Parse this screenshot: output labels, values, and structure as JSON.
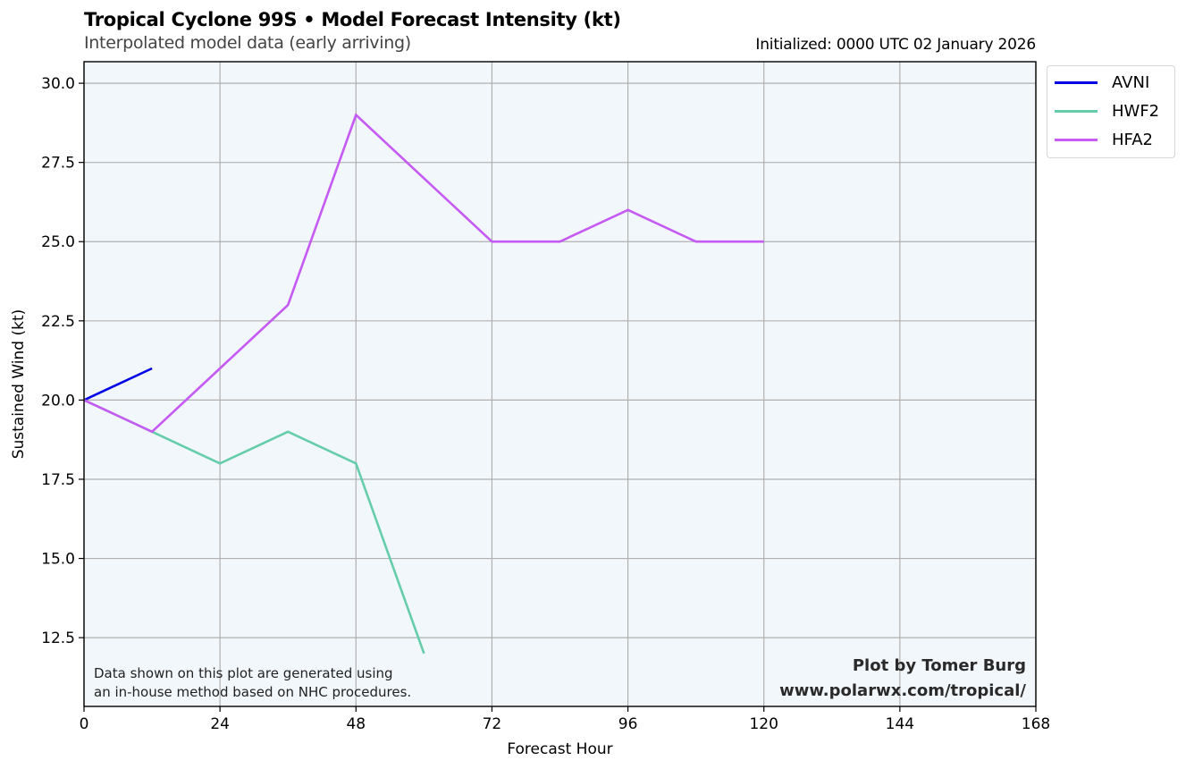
{
  "chart_data": {
    "type": "line",
    "title": "Tropical Cyclone 99S • Model Forecast Intensity (kt)",
    "subtitle": "Interpolated model data (early arriving)",
    "initialized": "Initialized: 0000 UTC 02 January 2026",
    "xlabel": "Forecast Hour",
    "ylabel": "Sustained Wind (kt)",
    "xlim": [
      0,
      168
    ],
    "ylim": [
      10.33,
      30.68
    ],
    "xticks": [
      0,
      24,
      48,
      72,
      96,
      120,
      144,
      168
    ],
    "yticks": [
      12.5,
      15.0,
      17.5,
      20.0,
      22.5,
      25.0,
      27.5,
      30.0
    ],
    "ytick_labels": [
      "12.5",
      "15.0",
      "17.5",
      "20.0",
      "22.5",
      "25.0",
      "27.5",
      "30.0"
    ],
    "grid": true,
    "legend_position": "outside-top-right",
    "series": [
      {
        "name": "AVNI",
        "color": "#0000e6",
        "x": [
          0,
          12
        ],
        "y": [
          20,
          21
        ]
      },
      {
        "name": "HWF2",
        "color": "#66cdaa",
        "x": [
          0,
          12,
          24,
          36,
          48,
          60
        ],
        "y": [
          20,
          19,
          18,
          19,
          18,
          12
        ]
      },
      {
        "name": "HFA2",
        "color": "#c55af5",
        "x": [
          0,
          12,
          24,
          36,
          48,
          60,
          72,
          84,
          96,
          108,
          120
        ],
        "y": [
          20,
          19,
          21,
          23,
          29,
          27,
          25,
          25,
          26,
          25,
          25
        ]
      }
    ],
    "annotations": {
      "disclaimer_line1": "Data shown on this plot are generated using",
      "disclaimer_line2": "an in-house method based on NHC procedures.",
      "credit_line1": "Plot by Tomer Burg",
      "credit_line2": "www.polarwx.com/tropical/"
    },
    "colors": {
      "plot_background": "#f2f7fb",
      "grid": "#b0b0b0"
    }
  }
}
